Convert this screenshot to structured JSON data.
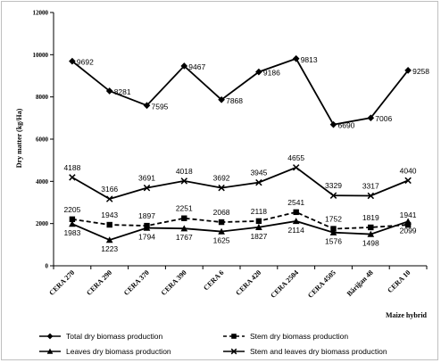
{
  "chart_data": {
    "type": "line",
    "title": "",
    "xlabel": "Maize hybrid",
    "ylabel": "Dry matter (kg/Ha)",
    "ylim": [
      0,
      12000
    ],
    "yticks": [
      0,
      2000,
      4000,
      6000,
      8000,
      10000,
      12000
    ],
    "grid": false,
    "legend_position": "bottom",
    "categories": [
      "CERA 270",
      "CERA 290",
      "CERA 370",
      "CERA 390",
      "CERA 6",
      "CERA 420",
      "CERA 2504",
      "CERA 4505",
      "Băriğan 48",
      "CERA 10"
    ],
    "series": [
      {
        "name": "Total dry biomass production",
        "marker": "diamond",
        "dash": "solid",
        "values": [
          9692,
          8281,
          7595,
          9467,
          7868,
          9186,
          9813,
          6690,
          7006,
          9258
        ],
        "labels": [
          "9692",
          "8281",
          "7595",
          "9467",
          "7868",
          "9186",
          "9813",
          "6690",
          "7006",
          "9258"
        ],
        "label_position": "right"
      },
      {
        "name": "Stem dry biomass production",
        "marker": "square",
        "dash": "dashed",
        "values": [
          2205,
          1943,
          1897,
          2251,
          2068,
          2118,
          2541,
          1752,
          1819,
          1941
        ],
        "labels": [
          "2205",
          "1943",
          "1897",
          "2251",
          "2068",
          "2118",
          "2541",
          "1752",
          "1819",
          "1941"
        ],
        "label_position": "above"
      },
      {
        "name": "Leaves dry biomass production",
        "marker": "triangle",
        "dash": "solid",
        "values": [
          1983,
          1223,
          1794,
          1767,
          1625,
          1827,
          2114,
          1576,
          1498,
          2099
        ],
        "labels": [
          "1983",
          "1223",
          "1794",
          "1767",
          "1625",
          "1827",
          "2114",
          "1576",
          "1498",
          "2099"
        ],
        "label_position": "below"
      },
      {
        "name": "Stem and leaves dry biomass production",
        "marker": "x",
        "dash": "solid",
        "values": [
          4188,
          3166,
          3691,
          4018,
          3692,
          3945,
          4655,
          3329,
          3317,
          4040
        ],
        "labels": [
          "4188",
          "3166",
          "3691",
          "4018",
          "3692",
          "3945",
          "4655",
          "3329",
          "3317",
          "4040"
        ],
        "label_position": "above"
      }
    ]
  }
}
